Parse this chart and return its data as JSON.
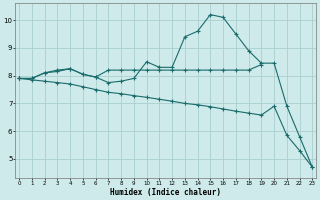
{
  "xlabel": "Humidex (Indice chaleur)",
  "bg_color": "#ceeaea",
  "grid_color": "#aacfcf",
  "line_color": "#1a6b6b",
  "x_ticks": [
    0,
    1,
    2,
    3,
    4,
    5,
    6,
    7,
    8,
    9,
    10,
    11,
    12,
    13,
    14,
    15,
    16,
    17,
    18,
    19,
    20,
    21,
    22,
    23
  ],
  "y_ticks": [
    5,
    6,
    7,
    8,
    9,
    10
  ],
  "ylim": [
    4.3,
    10.6
  ],
  "xlim": [
    -0.3,
    23.3
  ],
  "line1_x": [
    0,
    1,
    2,
    3,
    4,
    5,
    6,
    7,
    8,
    9,
    10,
    11,
    12,
    13,
    14,
    15,
    16,
    17,
    18,
    19,
    20,
    21,
    22,
    23
  ],
  "line1_y": [
    7.9,
    7.9,
    8.1,
    8.2,
    8.25,
    8.05,
    7.95,
    7.75,
    7.8,
    7.9,
    8.5,
    8.3,
    8.3,
    9.4,
    9.6,
    10.2,
    10.1,
    9.5,
    8.9,
    8.45,
    8.45,
    6.9,
    5.8,
    4.7
  ],
  "line2_x": [
    0,
    1,
    2,
    3,
    4,
    5,
    6,
    7,
    8,
    9,
    10,
    11,
    12,
    13,
    14,
    15,
    16,
    17,
    18,
    19
  ],
  "line2_y": [
    7.9,
    7.9,
    8.1,
    8.15,
    8.25,
    8.05,
    7.95,
    8.2,
    8.2,
    8.2,
    8.2,
    8.2,
    8.2,
    8.2,
    8.2,
    8.2,
    8.2,
    8.2,
    8.2,
    8.4
  ],
  "line3_x": [
    0,
    1,
    2,
    3,
    4,
    5,
    6,
    7,
    8,
    9,
    10,
    11,
    12,
    13,
    14,
    15,
    16,
    17,
    18,
    19,
    20,
    21,
    22,
    23
  ],
  "line3_y": [
    7.9,
    7.85,
    7.8,
    7.75,
    7.7,
    7.6,
    7.5,
    7.4,
    7.35,
    7.28,
    7.22,
    7.15,
    7.08,
    7.0,
    6.95,
    6.88,
    6.8,
    6.72,
    6.65,
    6.58,
    6.9,
    5.85,
    5.3,
    4.7
  ]
}
